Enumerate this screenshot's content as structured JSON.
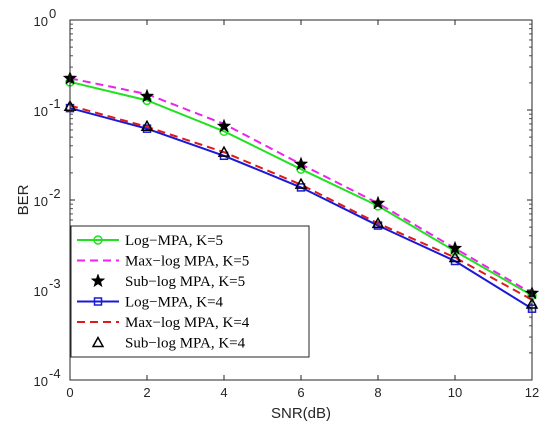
{
  "chart_data": {
    "type": "line",
    "title": "",
    "xlabel": "SNR(dB)",
    "ylabel": "BER",
    "xlim": [
      0,
      12
    ],
    "ylim": [
      0.0001,
      1
    ],
    "yscale": "log",
    "grid": false,
    "legend_position": "bottom-left",
    "x": [
      0,
      2,
      4,
      6,
      8,
      10,
      12
    ],
    "x_tick_labels": [
      "0",
      "2",
      "4",
      "6",
      "8",
      "10",
      "12"
    ],
    "y_tick_labels": [
      {
        "value": 1,
        "base": "10",
        "exp": "0"
      },
      {
        "value": 0.1,
        "base": "10",
        "exp": "-1"
      },
      {
        "value": 0.01,
        "base": "10",
        "exp": "-2"
      },
      {
        "value": 0.001,
        "base": "10",
        "exp": "-3"
      },
      {
        "value": 0.0001,
        "base": "10",
        "exp": "-4"
      }
    ],
    "series": [
      {
        "name": "Log−MPA, K=5",
        "values": [
          0.205,
          0.128,
          0.058,
          0.022,
          0.0086,
          0.0027,
          0.00087
        ],
        "color": "#22e022",
        "line": "solid",
        "marker": "circle"
      },
      {
        "name": "Max−log MPA, K=5",
        "values": [
          0.225,
          0.15,
          0.07,
          0.025,
          0.0092,
          0.0029,
          0.00092
        ],
        "color": "#ee22ee",
        "line": "dashed",
        "marker": "none"
      },
      {
        "name": "Sub−log MPA, K=5",
        "values": [
          0.225,
          0.142,
          0.066,
          0.025,
          0.0092,
          0.0029,
          0.00092
        ],
        "color": "#000000",
        "line": "none",
        "marker": "star"
      },
      {
        "name": "Log−MPA, K=4",
        "values": [
          0.105,
          0.062,
          0.031,
          0.0138,
          0.0052,
          0.0021,
          0.00062
        ],
        "color": "#1a1ad6",
        "line": "solid",
        "marker": "square"
      },
      {
        "name": "Max−log MPA, K=4",
        "values": [
          0.112,
          0.065,
          0.034,
          0.0148,
          0.0055,
          0.0023,
          0.00078
        ],
        "color": "#e01a1a",
        "line": "dashed",
        "marker": "none"
      },
      {
        "name": "Sub−log MPA, K=4",
        "values": [
          0.11,
          0.066,
          0.034,
          0.015,
          0.0055,
          0.0023,
          0.0007
        ],
        "color": "#000000",
        "line": "none",
        "marker": "triangle"
      }
    ]
  }
}
